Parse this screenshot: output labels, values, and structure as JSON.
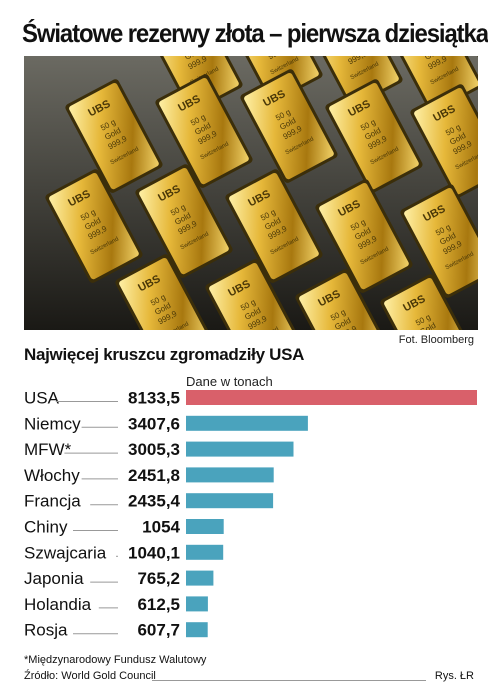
{
  "title": "Światowe rezerwy złota – pierwsza dziesiątka",
  "photo_credit": "Fot. Bloomberg",
  "subtitle": "Najwięcej kruszcu zgromadziły USA",
  "footnote": "*Międzynarodowy Fundusz Walutowy",
  "source": "Źródło: World Gold Council",
  "author": "Rys. ŁR",
  "bar_label": {
    "brand": "UBS",
    "weight": "50 g",
    "metal": "Gold",
    "fineness": "999,9",
    "origin": "Switzerland"
  },
  "colors": {
    "highlight": "#d9606a",
    "bar": "#4aa3bd"
  },
  "chart_data": {
    "type": "bar",
    "orientation": "horizontal",
    "unit_label": "Dane w tonach",
    "categories": [
      "USA",
      "Niemcy",
      "MFW*",
      "Włochy",
      "Francja",
      "Chiny",
      "Szwajcaria",
      "Japonia",
      "Holandia",
      "Rosja"
    ],
    "values": [
      8133.5,
      3407.6,
      3005.3,
      2451.8,
      2435.4,
      1054,
      1040.1,
      765.2,
      612.5,
      607.7
    ],
    "value_labels": [
      "8133,5",
      "3407,6",
      "3005,3",
      "2451,8",
      "2435,4",
      "1054",
      "1040,1",
      "765,2",
      "612,5",
      "607,7"
    ],
    "xlim": [
      0,
      8133.5
    ],
    "highlight_index": 0,
    "grid": false,
    "legend": "none"
  }
}
